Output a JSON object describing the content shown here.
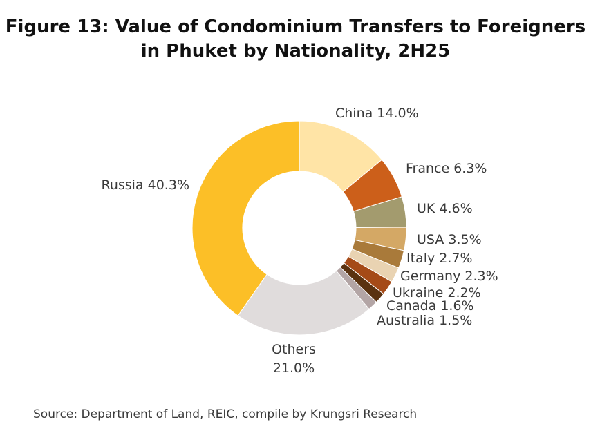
{
  "chart_data": {
    "type": "pie",
    "variant": "donut",
    "title_lines": [
      "Figure 13: Value of Condominium Transfers to Foreigners",
      "in Phuket by Nationality, 2H25"
    ],
    "slices": [
      {
        "label": "China 14.0%",
        "value": 14.0,
        "color": "#FFE4A6"
      },
      {
        "label": "France 6.3%",
        "value": 6.3,
        "color": "#CC5F1A"
      },
      {
        "label": "UK 4.6%",
        "value": 4.6,
        "color": "#A39B6E"
      },
      {
        "label": "USA 3.5%",
        "value": 3.5,
        "color": "#D4A865"
      },
      {
        "label": "Italy 2.7%",
        "value": 2.7,
        "color": "#A97A3A"
      },
      {
        "label": "Germany 2.3%",
        "value": 2.3,
        "color": "#E9D3B2"
      },
      {
        "label": "Ukraine 2.2%",
        "value": 2.2,
        "color": "#A54A17"
      },
      {
        "label": "Canada 1.6%",
        "value": 1.6,
        "color": "#5A3210"
      },
      {
        "label": "Australia 1.5%",
        "value": 1.5,
        "color": "#B3A5A5"
      },
      {
        "label_lines": [
          "Others",
          "21.0%"
        ],
        "value": 21.0,
        "color": "#E0DCDC"
      },
      {
        "label": "Russia 40.3%",
        "value": 40.3,
        "color": "#FCBF27"
      }
    ]
  },
  "source": "Source: Department of Land, REIC, compile by Krungsri Research"
}
